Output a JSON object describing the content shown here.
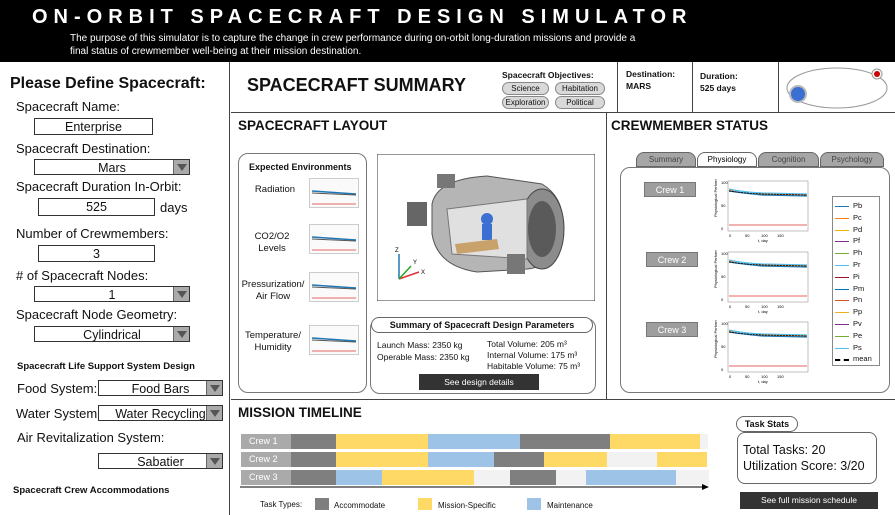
{
  "header": {
    "title": "ON-ORBIT SPACECRAFT DESIGN SIMULATOR",
    "description": "The purpose of this simulator is to capture the change in crew performance during on-orbit long-duration missions and provide a final status of crewmember well-being at their mission destination."
  },
  "left": {
    "heading": "Please Define Spacecraft:",
    "name_label": "Spacecraft Name:",
    "name_value": "Enterprise",
    "dest_label": "Spacecraft Destination:",
    "dest_value": "Mars",
    "duration_label": "Spacecraft Duration In-Orbit:",
    "duration_value": "525",
    "duration_unit": "days",
    "crew_label": "Number of Crewmembers:",
    "crew_value": "3",
    "nodes_label": "# of Spacecraft Nodes:",
    "nodes_value": "1",
    "geometry_label": "Spacecraft Node Geometry:",
    "geometry_value": "Cylindrical",
    "lss_heading": "Spacecraft Life Support System Design",
    "food_label": "Food System:",
    "food_value": "Food Bars",
    "water_label": "Water System:",
    "water_value": "Water Recycling",
    "air_label": "Air Revitalization System:",
    "air_value": "Sabatier",
    "accom_heading": "Spacecraft Crew Accommodations"
  },
  "summary": {
    "title": "SPACECRAFT SUMMARY",
    "objectives_label": "Spacecraft Objectives:",
    "objectives": [
      "Science",
      "Habitation",
      "Exploration",
      "Political"
    ],
    "destination_label": "Destination:",
    "destination_value": "MARS",
    "duration_label": "Duration:",
    "duration_value": "525 days"
  },
  "layout": {
    "title": "SPACECRAFT LAYOUT",
    "env_title": "Expected Environments",
    "env_items": [
      "Radiation",
      "CO2/O2 Levels",
      "Pressurization/ Air Flow",
      "Temperature/ Humidity"
    ],
    "params_title": "Summary of Spacecraft Design Parameters",
    "launch_mass": "Launch Mass: 2350 kg",
    "operable_mass": "Operable Mass: 2350 kg",
    "total_volume": "Total Volume: 205 m³",
    "internal_volume": "Internal Volume: 175 m³",
    "habitable_volume": "Habitable Volume: 75 m³",
    "details_button": "See design details"
  },
  "crew_status": {
    "title": "CREWMEMBER STATUS",
    "tabs": [
      "Summary",
      "Physiology",
      "Cognition",
      "Psychology"
    ],
    "active_tab": "Physiology",
    "crew": [
      "Crew 1",
      "Crew 2",
      "Crew 3"
    ],
    "ylabel": "Physiological Performance, %",
    "xlabel": "t, day",
    "yticks": [
      "100",
      "50",
      "0"
    ],
    "xticks": [
      "0",
      "50",
      "100",
      "150"
    ],
    "legend": [
      "Pb",
      "Pc",
      "Pd",
      "Pf",
      "Ph",
      "Pr",
      "Pi",
      "Pm",
      "Pn",
      "Pp",
      "Pv",
      "Pe",
      "Ps",
      "mean"
    ],
    "legend_colors": [
      "#1f77b4",
      "#ff7f0e",
      "#e8b800",
      "#7e2f8e",
      "#77ac30",
      "#4dbeee",
      "#a2142f",
      "#0072bd",
      "#d95319",
      "#edb120",
      "#7e2f8e",
      "#77ac30",
      "#4dbeee",
      "#000000"
    ]
  },
  "timeline": {
    "title": "MISSION TIMELINE",
    "rows": [
      {
        "label": "Crew 1",
        "segments": [
          [
            "#7f7f7f",
            45
          ],
          [
            "#ffd966",
            92
          ],
          [
            "#9dc3e6",
            92
          ],
          [
            "#7f7f7f",
            90
          ],
          [
            "#ffd966",
            90
          ],
          [
            "#f2f2f2",
            8
          ]
        ]
      },
      {
        "label": "Crew 2",
        "segments": [
          [
            "#7f7f7f",
            45
          ],
          [
            "#ffd966",
            92
          ],
          [
            "#9dc3e6",
            66
          ],
          [
            "#7f7f7f",
            50
          ],
          [
            "#ffd966",
            63
          ],
          [
            "#f2f2f2",
            50
          ],
          [
            "#ffd966",
            50
          ]
        ]
      },
      {
        "label": "Crew 3",
        "segments": [
          [
            "#7f7f7f",
            45
          ],
          [
            "#9dc3e6",
            46
          ],
          [
            "#ffd966",
            92
          ],
          [
            "#f2f2f2",
            36
          ],
          [
            "#7f7f7f",
            46
          ],
          [
            "#f2f2f2",
            30
          ],
          [
            "#9dc3e6",
            90
          ],
          [
            "#f2f2f2",
            33
          ]
        ]
      }
    ],
    "legend_label": "Task Types:",
    "legend": [
      {
        "label": "Accommodate",
        "color": "#7f7f7f"
      },
      {
        "label": "Mission-Specific",
        "color": "#ffd966"
      },
      {
        "label": "Maintenance",
        "color": "#9dc3e6"
      }
    ],
    "stats_title": "Task Stats",
    "total_tasks": "Total Tasks: 20",
    "utilization": "Utilization Score: 3/20",
    "schedule_button": "See full mission schedule"
  }
}
